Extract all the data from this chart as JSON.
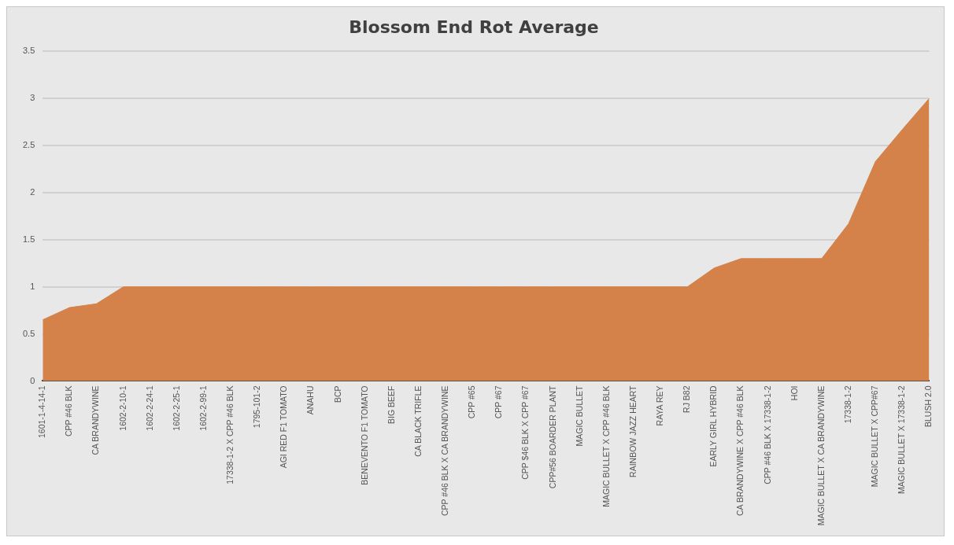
{
  "chart_data": {
    "type": "area",
    "title": "Blossom End Rot Average",
    "categories": [
      "1601-1-4-14-1",
      "CPP #46 BLK",
      "CA BRANDYWINE",
      "1602-2-10-1",
      "1602-2-24-1",
      "1602-2-25-1",
      "1602-2-99-1",
      "17338-1-2 X CPP #46 BLK",
      "1795-101-2",
      "AGI RED F1 TOMATO",
      "ANAHU",
      "BCP",
      "BENEVENTO F1 TOMATO",
      "BIG BEEF",
      "CA BLACK TRIFLE",
      "CPP #46 BLK X CA BRANDYWINE",
      "CPP #65",
      "CPP #67",
      "CPP $46 BLK X CPP #67",
      "CPP#56 BOARDER PLANT",
      "MAGIC BULLET",
      "MAGIC BULLET X CPP #46 BLK",
      "RAINBOW JAZZ HEART",
      "RAYA REY",
      "RJ B82",
      "EARLY GIRL HYBRID",
      "CA BRANDYWINE X CPP #46 BLK",
      "CPP #46 BLK X 17338-1-2",
      "HOI",
      "MAGIC BULLET X CA BRANDYWINE",
      "17338-1-2",
      "MAGIC BULLET X CPP#67",
      "MAGIC BULLET X 17338-1-2",
      "BLUSH 2.0"
    ],
    "values": [
      0.65,
      0.78,
      0.82,
      1,
      1,
      1,
      1,
      1,
      1,
      1,
      1,
      1,
      1,
      1,
      1,
      1,
      1,
      1,
      1,
      1,
      1,
      1,
      1,
      1,
      1,
      1.2,
      1.3,
      1.3,
      1.3,
      1.3,
      1.67,
      2.33,
      2.67,
      3
    ],
    "color": "#d4824a",
    "ylim": [
      0,
      3.5
    ],
    "yticks": [
      0,
      0.5,
      1,
      1.5,
      2,
      2.5,
      3,
      3.5
    ],
    "grid": "y",
    "legend": false
  }
}
